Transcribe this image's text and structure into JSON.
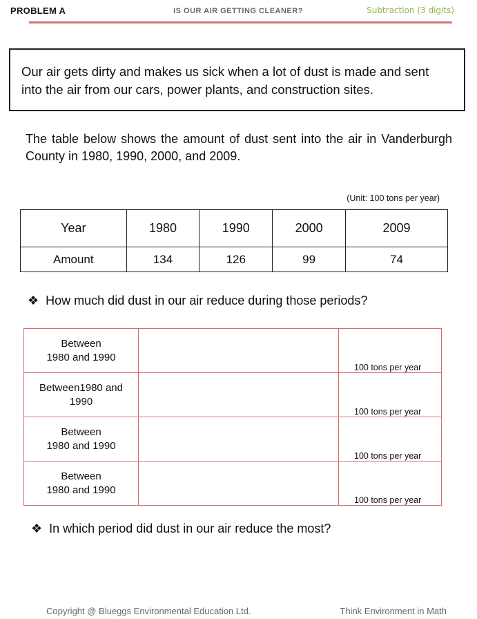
{
  "header": {
    "problem": "PROBLEM A",
    "title": "IS OUR AIR GETTING CLEANER?",
    "subtitle": "Subtraction (3 digits)"
  },
  "box_text": "Our air gets dirty and makes us sick when a lot of dust is made and sent into the air from our cars, power plants, and construction sites.",
  "intro": "The table below shows the amount of dust sent into the air in Vanderburgh County in 1980, 1990, 2000, and 2009.",
  "unit": "(Unit: 100  tons per year)",
  "data_table": {
    "headers": [
      "Year",
      "1980",
      "1990",
      "2000",
      "2009"
    ],
    "row": [
      "Amount",
      "134",
      "126",
      "99",
      "74"
    ]
  },
  "question1": "How much did dust in our air reduce during those periods?",
  "answer_rows": [
    {
      "period": "Between\n1980 and 1990",
      "unit": "100 tons per year"
    },
    {
      "period": "Between1980 and\n1990",
      "unit": "100 tons per year"
    },
    {
      "period": "Between\n1980 and 1990",
      "unit": "100 tons per year"
    },
    {
      "period": "Between\n1980 and 1990",
      "unit": "100 tons per year"
    }
  ],
  "question2": "In which period did dust in our air reduce the most?",
  "bullet": "❖",
  "footer": {
    "left": "Copyright @ Blueggs Environmental Education Ltd.",
    "right": "Think Environment in Math"
  },
  "colors": {
    "accent_rule": "#d67272",
    "subtitle": "#8fb54a",
    "answer_border": "#d76a6a"
  }
}
